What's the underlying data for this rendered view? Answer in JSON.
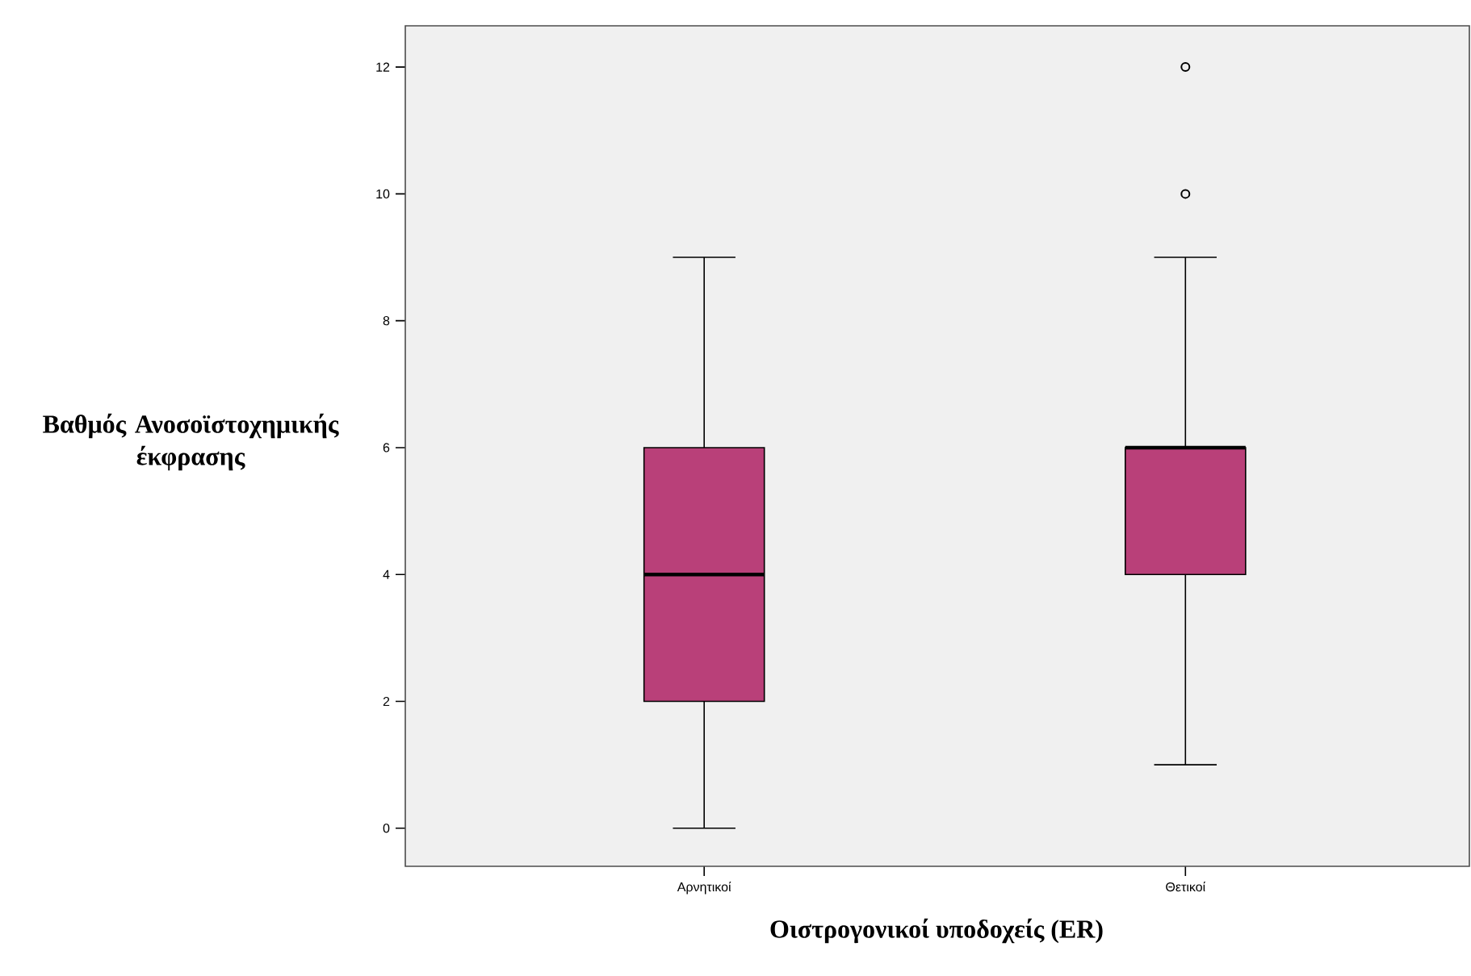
{
  "chart_data": {
    "type": "box",
    "categories": [
      "Αρνητικοί",
      "Θετικοί"
    ],
    "boxes": [
      {
        "low": 0,
        "q1": 2,
        "median": 4,
        "q3": 6,
        "high": 9
      },
      {
        "low": 1,
        "q1": 4,
        "median": 6,
        "q3": 6,
        "high": 9,
        "outliers": [
          10,
          12
        ]
      }
    ],
    "color": "#b94079",
    "ylim": [
      -0.6,
      12.65
    ],
    "yticks": [
      0,
      2,
      4,
      6,
      8,
      10,
      12
    ],
    "xlabel": "Οιστρογονικοί υποδοχείς (ER)",
    "ylabel": "Βαθμός Ανοσοϊστοχημικής έκφρασης"
  }
}
